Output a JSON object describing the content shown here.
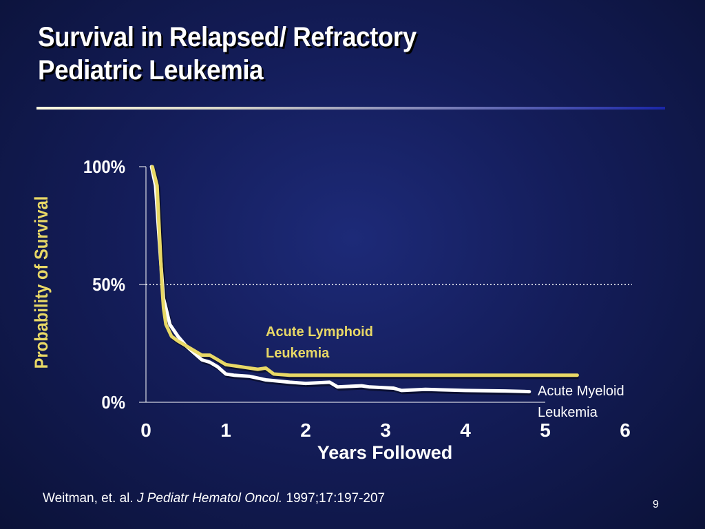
{
  "slide": {
    "title_line1": "Survival in Relapsed/ Refractory",
    "title_line2": "Pediatric Leukemia",
    "page_number": "9"
  },
  "citation": {
    "authors": "Weitman, et. al.",
    "journal": "J Pediatr Hematol Oncol.",
    "ref": "1997;17:197-207"
  },
  "colors": {
    "background": "#141d5a",
    "all_line": "#e8d866",
    "aml_line": "#ffffff",
    "text": "#ffffff"
  },
  "chart_data": {
    "type": "line",
    "xlabel": "Years Followed",
    "ylabel": "Probability of Survival",
    "xlim": [
      0,
      6
    ],
    "ylim": [
      0,
      100
    ],
    "x_ticks": [
      "0",
      "1",
      "2",
      "3",
      "4",
      "5",
      "6"
    ],
    "y_ticks": [
      "0%",
      "50%",
      "100%"
    ],
    "reference_line": {
      "y": 50,
      "style": "dotted"
    },
    "series": [
      {
        "name": "Acute Myeloid Leukemia",
        "label_line1": "Acute Myeloid",
        "label_line2": "Leukemia",
        "color": "#ffffff",
        "x": [
          0.07,
          0.12,
          0.18,
          0.22,
          0.25,
          0.3,
          0.4,
          0.5,
          0.6,
          0.7,
          0.8,
          0.9,
          1.0,
          1.1,
          1.3,
          1.5,
          1.8,
          2.0,
          2.3,
          2.4,
          2.7,
          2.8,
          3.1,
          3.2,
          3.5,
          4.0,
          4.5,
          4.8
        ],
        "y": [
          100,
          92,
          62,
          44,
          40,
          33,
          28,
          24,
          21,
          18,
          17,
          15,
          12,
          11.5,
          11,
          9.5,
          8.5,
          8,
          8.5,
          6.5,
          7,
          6.5,
          6,
          5,
          5.5,
          5,
          4.8,
          4.5
        ]
      },
      {
        "name": "Acute Lymphoid Leukemia",
        "label_line1": "Acute Lymphoid",
        "label_line2": "Leukemia",
        "color": "#e8d866",
        "x": [
          0.08,
          0.14,
          0.2,
          0.22,
          0.25,
          0.32,
          0.4,
          0.5,
          0.6,
          0.7,
          0.8,
          0.9,
          1.0,
          1.2,
          1.4,
          1.5,
          1.6,
          1.8,
          2.0,
          3.0,
          4.0,
          5.4
        ],
        "y": [
          100,
          92,
          50,
          40,
          33,
          28,
          26,
          24,
          22,
          20,
          20,
          18,
          16,
          15,
          14,
          14.5,
          12,
          11.5,
          11.5,
          11.5,
          11.5,
          11.5
        ]
      }
    ]
  }
}
